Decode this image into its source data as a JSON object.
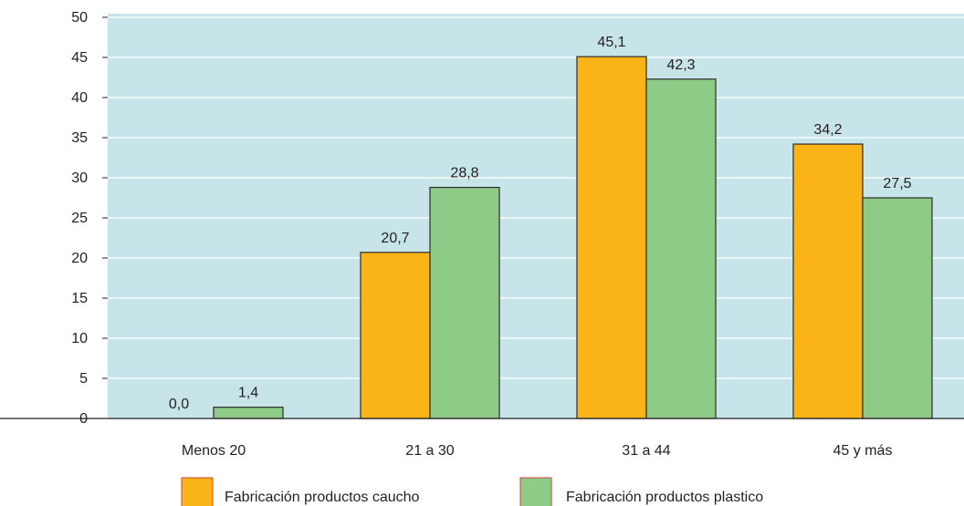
{
  "chart_data": {
    "type": "bar",
    "categories": [
      "Menos 20",
      "21 a 30",
      "31 a 44",
      "45 y más"
    ],
    "series": [
      {
        "name": "Fabricación productos caucho",
        "values": [
          0.0,
          20.7,
          45.1,
          34.2
        ],
        "labels": [
          "0,0",
          "20,7",
          "45,1",
          "34,2"
        ],
        "color": "#fbb417"
      },
      {
        "name": "Fabricación productos plastico",
        "values": [
          1.4,
          28.8,
          42.3,
          27.5
        ],
        "labels": [
          "1,4",
          "28,8",
          "42,3",
          "27,5"
        ],
        "color": "#8dcb87"
      }
    ],
    "yticks": [
      "0",
      "5",
      "10",
      "15",
      "20",
      "25",
      "30",
      "35",
      "40",
      "45",
      "50"
    ],
    "ylim": [
      0,
      50
    ],
    "grid": true,
    "legend": "bottom",
    "colors": {
      "plot_background": "#c7e5e8",
      "gridline": "#ffffff",
      "bar_border": "#2b2b2b",
      "text": "#231f20"
    }
  }
}
